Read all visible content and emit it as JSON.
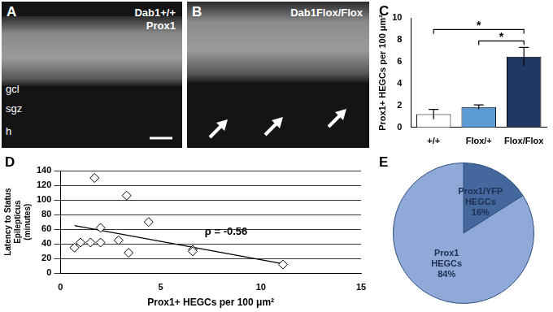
{
  "chart_data": [
    {
      "panel": "C",
      "type": "bar",
      "categories": [
        "+/+",
        "Flox/+",
        "Flox/Flox"
      ],
      "values": [
        1.2,
        1.85,
        6.45
      ],
      "errors": [
        0.45,
        0.2,
        0.85
      ],
      "colors": [
        "#ffffff",
        "#5b9bd5",
        "#1f3864"
      ],
      "y_label": "Prox1+ HEGCs per 100 μm²",
      "ylim": [
        0,
        10
      ],
      "yticks": [
        0,
        2,
        4,
        6,
        8,
        10
      ],
      "grid": false,
      "annotations": [
        {
          "text": "*",
          "from": "+/+",
          "to": "Flox/Flox"
        },
        {
          "text": "*",
          "from": "Flox/+",
          "to": "Flox/Flox"
        }
      ]
    },
    {
      "panel": "D",
      "type": "scatter",
      "x": [
        0.7,
        1.0,
        1.5,
        1.7,
        2.0,
        2.0,
        2.9,
        3.3,
        3.4,
        4.4,
        6.6,
        6.6,
        11.1
      ],
      "values": [
        35,
        42,
        42,
        130,
        42,
        62,
        45,
        106,
        28,
        70,
        32,
        30,
        12
      ],
      "x_label": "Prox1+ HEGCs per 100 μm²",
      "y_label": [
        "Latency to Status",
        "Epilepticus",
        "(minutes)"
      ],
      "xlim": [
        0,
        15
      ],
      "xticks": [
        0,
        5,
        10,
        15
      ],
      "ylim": [
        0,
        140
      ],
      "yticks": [
        0,
        20,
        40,
        60,
        80,
        100,
        120,
        140
      ],
      "grid": true,
      "marker": "diamond",
      "color": "#ffffff",
      "trendline": {
        "x": [
          0.7,
          11.1
        ],
        "y": [
          65,
          13
        ]
      },
      "annotations": [
        "ρ = -0.56"
      ]
    },
    {
      "panel": "E",
      "type": "pie",
      "categories": [
        "Prox1/YFP HEGCs",
        "Prox1 HEGCs"
      ],
      "values": [
        16,
        84
      ],
      "value_labels": [
        "16%",
        "84%"
      ],
      "colors": [
        "#44679e",
        "#8fa9d9"
      ],
      "data_labels": true
    }
  ],
  "images": [
    {
      "panel": "A",
      "labels": [
        "Dab1+/+",
        "Prox1"
      ],
      "regions": [
        "gcl",
        "sgz",
        "h"
      ]
    },
    {
      "panel": "B",
      "labels": [
        "Dab1Flox/Flox"
      ]
    }
  ]
}
